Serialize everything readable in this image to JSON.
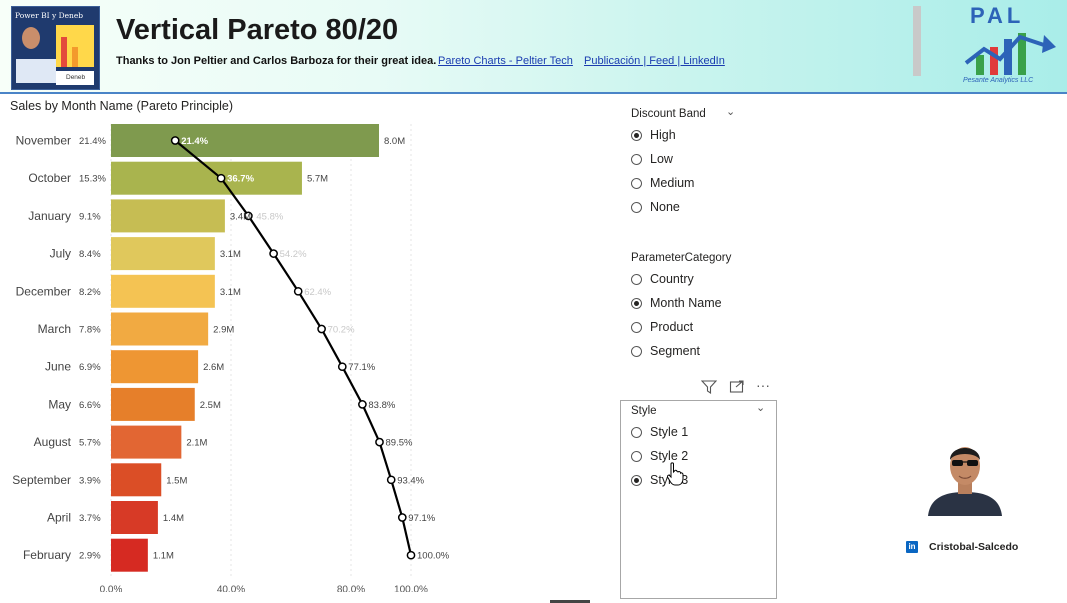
{
  "header": {
    "title": "Vertical Pareto 80/20",
    "subtitle": "Thanks to Jon Peltier and Carlos Barboza for their great idea.",
    "links": [
      "Pareto Charts - Peltier Tech",
      "Publicación | Feed | LinkedIn"
    ],
    "thumbnail_title": "Power BI y Deneb",
    "thumbnail_badge": "Deneb",
    "logo_text": "PAL",
    "logo_subtitle": "Pesante Analytics LLC"
  },
  "chart_data": {
    "type": "bar",
    "title": "Sales by Month Name (Pareto Principle)",
    "orientation": "horizontal",
    "categories": [
      "November",
      "October",
      "January",
      "July",
      "December",
      "March",
      "June",
      "May",
      "August",
      "September",
      "April",
      "February"
    ],
    "category_share_labels": [
      "21.4%",
      "15.3%",
      "9.1%",
      "8.4%",
      "8.2%",
      "7.8%",
      "6.9%",
      "6.6%",
      "5.7%",
      "3.9%",
      "3.7%",
      "2.9%"
    ],
    "values": [
      8.0,
      5.7,
      3.4,
      3.1,
      3.1,
      2.9,
      2.6,
      2.5,
      2.1,
      1.5,
      1.4,
      1.1
    ],
    "value_labels": [
      "8.0M",
      "5.7M",
      "3.4M",
      "3.1M",
      "3.1M",
      "2.9M",
      "2.6M",
      "2.5M",
      "2.1M",
      "1.5M",
      "1.4M",
      "1.1M"
    ],
    "cumulative_pct": [
      21.4,
      36.7,
      45.8,
      54.2,
      62.4,
      70.2,
      77.1,
      83.8,
      89.5,
      93.4,
      97.1,
      100.0
    ],
    "cumulative_labels": [
      "21.4%",
      "36.7%",
      "45.8%",
      "54.2%",
      "62.4%",
      "70.2%",
      "77.1%",
      "83.8%",
      "89.5%",
      "93.4%",
      "97.1%",
      "100.0%"
    ],
    "x_ticks": [
      "0.0%",
      "40.0%",
      "80.0%",
      "100.0%"
    ],
    "x_tick_values": [
      0,
      40,
      80,
      100
    ],
    "xlim": [
      0,
      100
    ],
    "bar_colors": [
      "#7f9a4e",
      "#a9b44e",
      "#c6bd53",
      "#e0c85c",
      "#f4c353",
      "#f1aa42",
      "#ee9633",
      "#e67f2a",
      "#e26633",
      "#db4e26",
      "#d73a26",
      "#d62a22"
    ],
    "line_color": "#000000",
    "grid": true
  },
  "slicers": {
    "discount_band": {
      "title": "Discount Band",
      "options": [
        "High",
        "Low",
        "Medium",
        "None"
      ],
      "selected": "High"
    },
    "parameter_category": {
      "title": "ParameterCategory",
      "options": [
        "Country",
        "Month Name",
        "Product",
        "Segment"
      ],
      "selected": "Month Name"
    },
    "style": {
      "title": "Style",
      "options": [
        "Style 1",
        "Style 2",
        "Style 3"
      ],
      "selected": "Style 3"
    }
  },
  "profile": {
    "name": "Cristobal-Salcedo",
    "icon": "linkedin-icon"
  }
}
